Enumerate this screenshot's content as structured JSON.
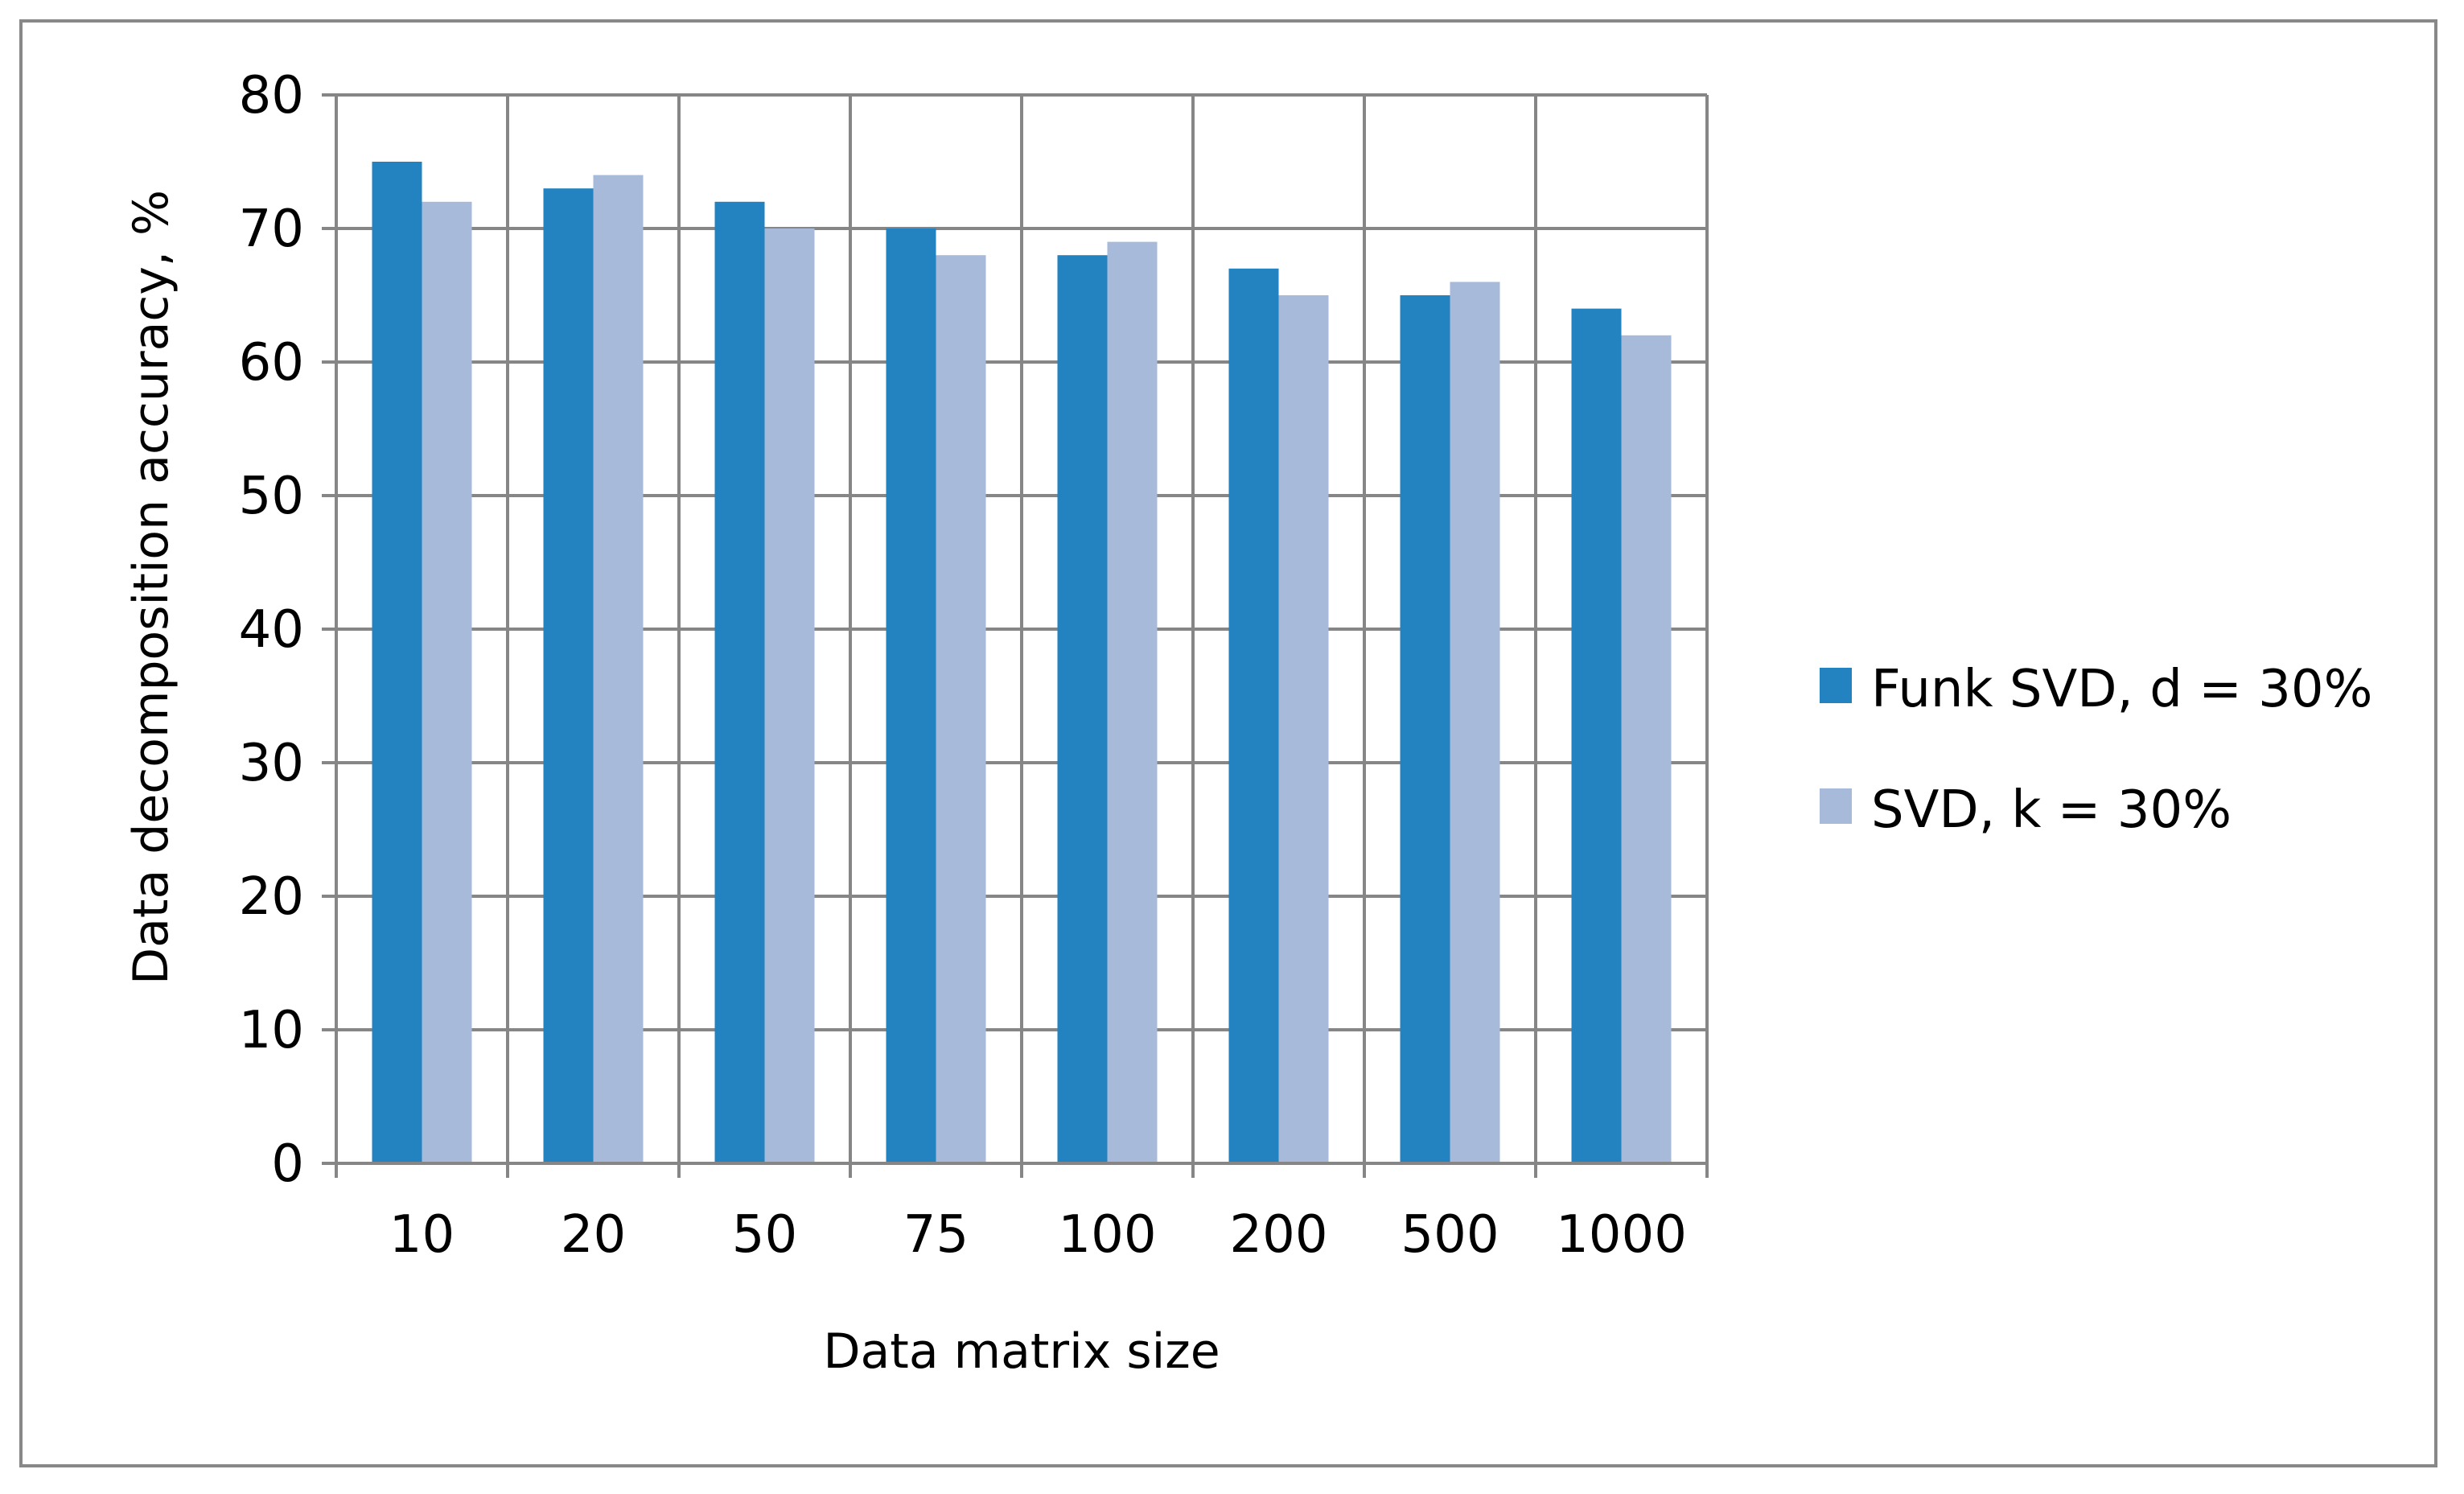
{
  "chart_data": {
    "type": "bar",
    "title": "",
    "xlabel": "Data matrix size",
    "ylabel": "Data decomposition accuracy, %",
    "categories": [
      "10",
      "20",
      "50",
      "75",
      "100",
      "200",
      "500",
      "1000"
    ],
    "series": [
      {
        "name": "Funk SVD, d = 30%",
        "color": "#2382C0",
        "values": [
          75,
          73,
          72,
          70,
          68,
          67,
          65,
          64
        ]
      },
      {
        "name": "SVD, k = 30%",
        "color": "#A7BADA",
        "values": [
          72,
          74,
          70,
          68,
          69,
          65,
          66,
          62
        ]
      }
    ],
    "ylim": [
      0,
      80
    ],
    "yticks": [
      0,
      10,
      20,
      30,
      40,
      50,
      60,
      70,
      80
    ],
    "grid": true,
    "legend_position": "right"
  }
}
